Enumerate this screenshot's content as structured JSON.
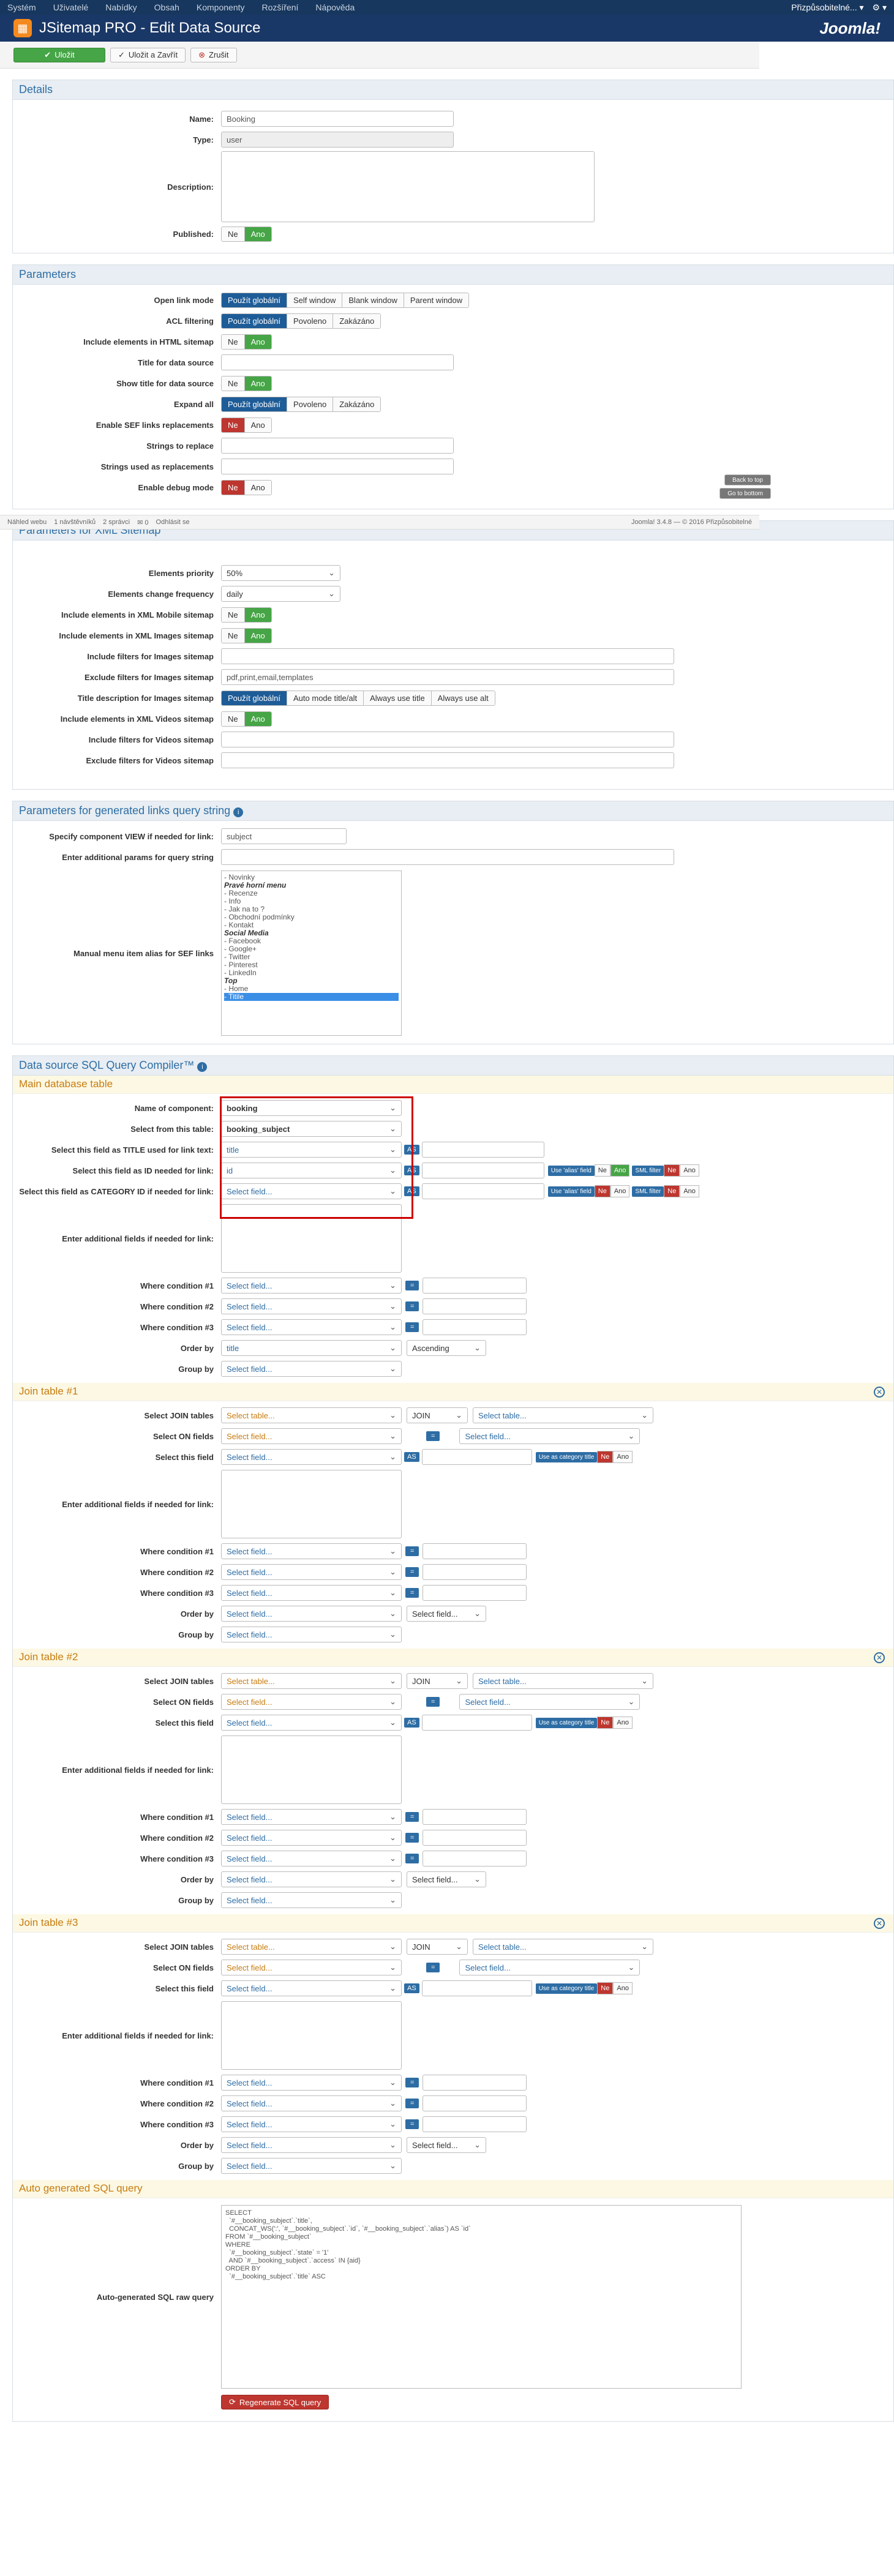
{
  "topbar": {
    "items": [
      "Systém",
      "Uživatelé",
      "Nabídky",
      "Obsah",
      "Komponenty",
      "Rozšíření",
      "Nápověda"
    ],
    "user": "Přizpůsobitelné...",
    "user_caret": "▾",
    "gear": "⚙ ▾"
  },
  "header": {
    "title": "JSitemap PRO - Edit Data Source",
    "brand": "Joomla!"
  },
  "toolbar": {
    "save": "Uložit",
    "save_close": "Uložit a Zavřít",
    "close": "Zrušit"
  },
  "details": {
    "legend": "Details",
    "name_label": "Name:",
    "name_value": "Booking",
    "type_label": "Type:",
    "type_value": "user",
    "desc_label": "Description:",
    "published_label": "Published:",
    "no": "Ne",
    "yes": "Ano"
  },
  "params": {
    "legend": "Parameters",
    "open_label": "Open link mode",
    "open_opts": [
      "Použít globální",
      "Self window",
      "Blank window",
      "Parent window"
    ],
    "acl_label": "ACL filtering",
    "acl_opts": [
      "Použít globální",
      "Povoleno",
      "Zakázáno"
    ],
    "html_label": "Include elements in HTML sitemap",
    "title_label": "Title for data source",
    "show_title_label": "Show title for data source",
    "expand_label": "Expand all",
    "sef_label": "Enable SEF links replacements",
    "strings_label": "Strings to replace",
    "repl_label": "Strings used as replacements",
    "debug_label": "Enable debug mode",
    "back_top": "Back to top",
    "go_bottom": "Go to bottom"
  },
  "status": {
    "view": "Náhled webu",
    "visitors": "1 návštěvníků",
    "admins": "2 správci",
    "msgs": "0",
    "logout": "Odhlásit se",
    "version": "Joomla! 3.4.8 — © 2016 Přizpůsobitelné"
  },
  "xml": {
    "legend": "Parameters for XML Sitemap",
    "prio_label": "Elements priority",
    "prio_value": "50%",
    "freq_label": "Elements change frequency",
    "freq_value": "daily",
    "mobile_label": "Include elements in XML Mobile sitemap",
    "images_label": "Include elements in XML Images sitemap",
    "inc_img_label": "Include filters for Images sitemap",
    "exc_img_label": "Exclude filters for Images sitemap",
    "exc_img_value": "pdf,print,email,templates",
    "title_desc_label": "Title description for Images sitemap",
    "title_desc_opts": [
      "Použít globální",
      "Auto mode title/alt",
      "Always use title",
      "Always use alt"
    ],
    "videos_label": "Include elements in XML Videos sitemap",
    "inc_vid_label": "Include filters for Videos sitemap",
    "exc_vid_label": "Exclude filters for Videos sitemap"
  },
  "gen": {
    "legend": "Parameters for generated links query string",
    "info_icon": "i",
    "view_label": "Specify component VIEW if needed for link:",
    "view_value": "subject",
    "addp_label": "Enter additional params for query string",
    "alias_label": "Manual menu item alias for SEF links",
    "tree": [
      [
        "- Novinky",
        ""
      ],
      [
        "Pravé horní menu",
        "grp"
      ],
      [
        "- Recenze",
        ""
      ],
      [
        "- Info",
        ""
      ],
      [
        "- Jak na to ?",
        ""
      ],
      [
        "- Obchodní podmínky",
        ""
      ],
      [
        "- Kontakt",
        ""
      ],
      [
        "Social Media",
        "grp"
      ],
      [
        "- Facebook",
        ""
      ],
      [
        "- Google+",
        ""
      ],
      [
        "- Twitter",
        ""
      ],
      [
        "- Pinterest",
        ""
      ],
      [
        "- LinkedIn",
        ""
      ],
      [
        "Top",
        "grp"
      ],
      [
        "- Home",
        ""
      ],
      [
        "- Titile",
        "selx"
      ]
    ]
  },
  "sql": {
    "legend": "Data source SQL Query Compiler™",
    "main_title": "Main database table",
    "comp_label": "Name of component:",
    "comp_value": "booking",
    "table_label": "Select from this table:",
    "table_value": "booking_subject",
    "title_field_label": "Select this field as TITLE used for link text:",
    "title_field_value": "title",
    "id_label": "Select this field as ID needed for link:",
    "id_value": "id",
    "cat_label": "Select this field as CATEGORY ID if needed for link:",
    "addf_label": "Enter additional fields if needed for link:",
    "w1": "Where condition #1",
    "w2": "Where condition #2",
    "w3": "Where condition #3",
    "order_label": "Order by",
    "order_value": "title",
    "asc": "Ascending",
    "group_label": "Group by",
    "select_field": "Select field...",
    "select_table": "Select table...",
    "join": "JOIN",
    "as": "AS",
    "eq": "=",
    "use_alias": "Use 'alias' field",
    "sml": "SML filter",
    "use_cat": "Use as category title",
    "join_tables_label": "Select JOIN tables",
    "on_fields_label": "Select ON fields",
    "this_field_label": "Select this field",
    "j1": "Join table #1",
    "j2": "Join table #2",
    "j3": "Join table #3",
    "close_icon": "✕",
    "auto_title": "Auto generated SQL query",
    "raw_label": "Auto-generated SQL raw query",
    "raw": "SELECT\n  `#__booking_subject`.`title`,\n  CONCAT_WS(':', `#__booking_subject`.`id`, `#__booking_subject`.`alias`) AS `id`\nFROM `#__booking_subject`\nWHERE\n  `#__booking_subject`.`state` = '1'\n  AND `#__booking_subject`.`access` IN {aid}\nORDER BY\n  `#__booking_subject`.`title` ASC",
    "regen": "Regenerate SQL query"
  }
}
